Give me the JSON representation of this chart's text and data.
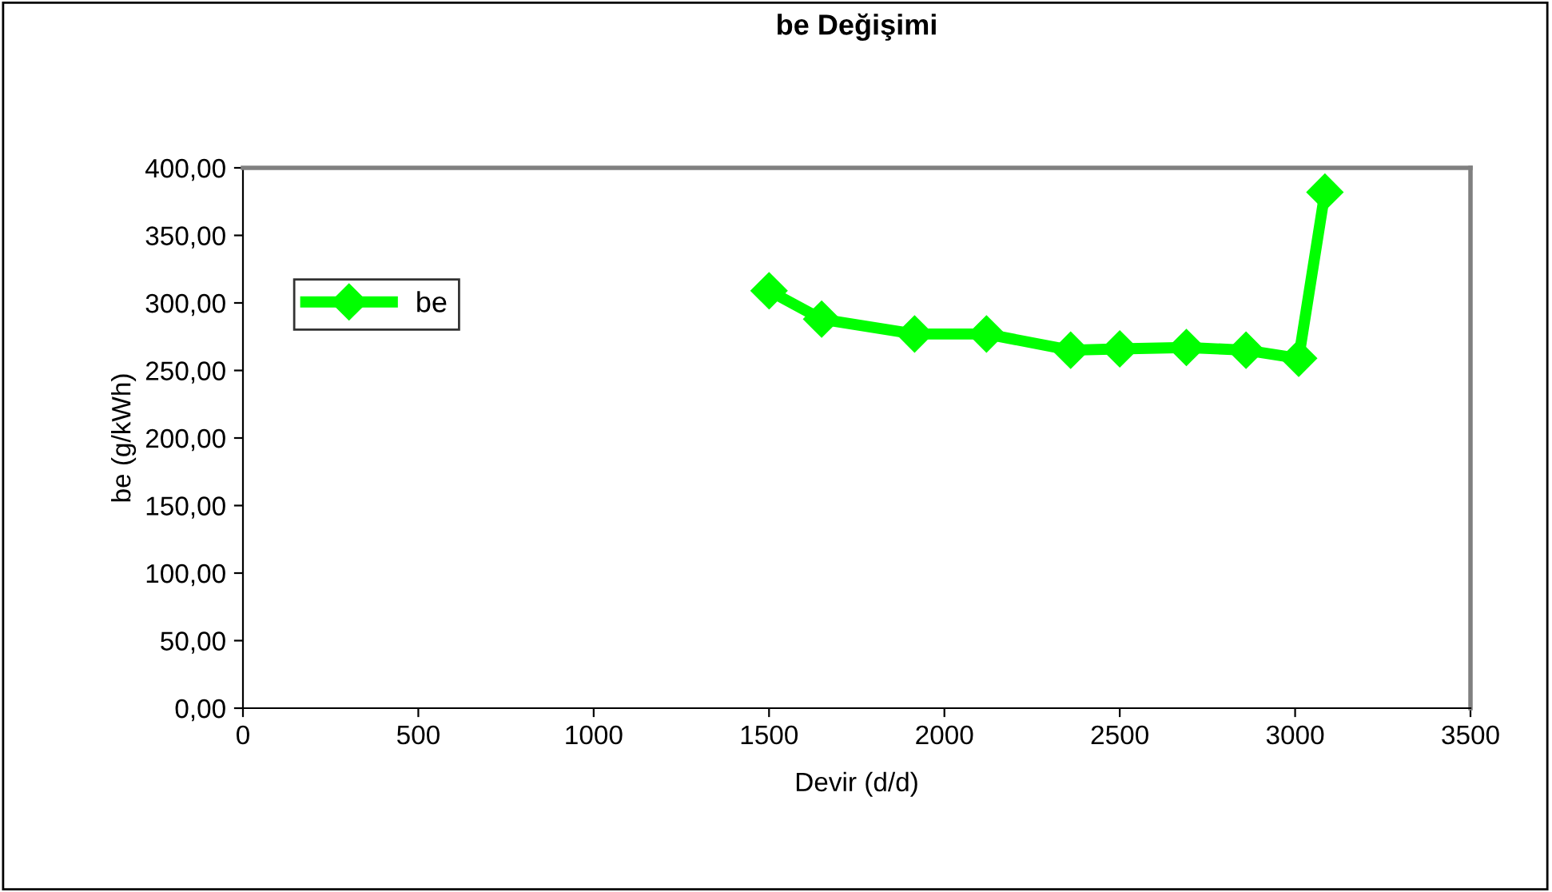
{
  "chart_data": {
    "type": "line",
    "title": "be Değişimi",
    "xlabel": "Devir (d/d)",
    "ylabel": "be (g/kWh)",
    "x": [
      1500,
      1650,
      1915,
      2120,
      2360,
      2500,
      2690,
      2860,
      3010,
      3085
    ],
    "series": [
      {
        "name": "be",
        "color": "#00ff00",
        "values": [
          309,
          288,
          277,
          277,
          265,
          266,
          267,
          265,
          259,
          382
        ]
      }
    ],
    "xlim": [
      0,
      3500
    ],
    "xticks": [
      0,
      500,
      1000,
      1500,
      2000,
      2500,
      3000,
      3500
    ],
    "ylim": [
      0,
      400
    ],
    "yticks": [
      {
        "value": 0,
        "label": "0,00"
      },
      {
        "value": 50,
        "label": "50,00"
      },
      {
        "value": 100,
        "label": "100,00"
      },
      {
        "value": 150,
        "label": "150,00"
      },
      {
        "value": 200,
        "label": "200,00"
      },
      {
        "value": 250,
        "label": "250,00"
      },
      {
        "value": 300,
        "label": "300,00"
      },
      {
        "value": 350,
        "label": "350,00"
      },
      {
        "value": 400,
        "label": "400,00"
      }
    ],
    "grid": false,
    "legend": "top left",
    "marker": "diamond",
    "line_style": "solid"
  }
}
